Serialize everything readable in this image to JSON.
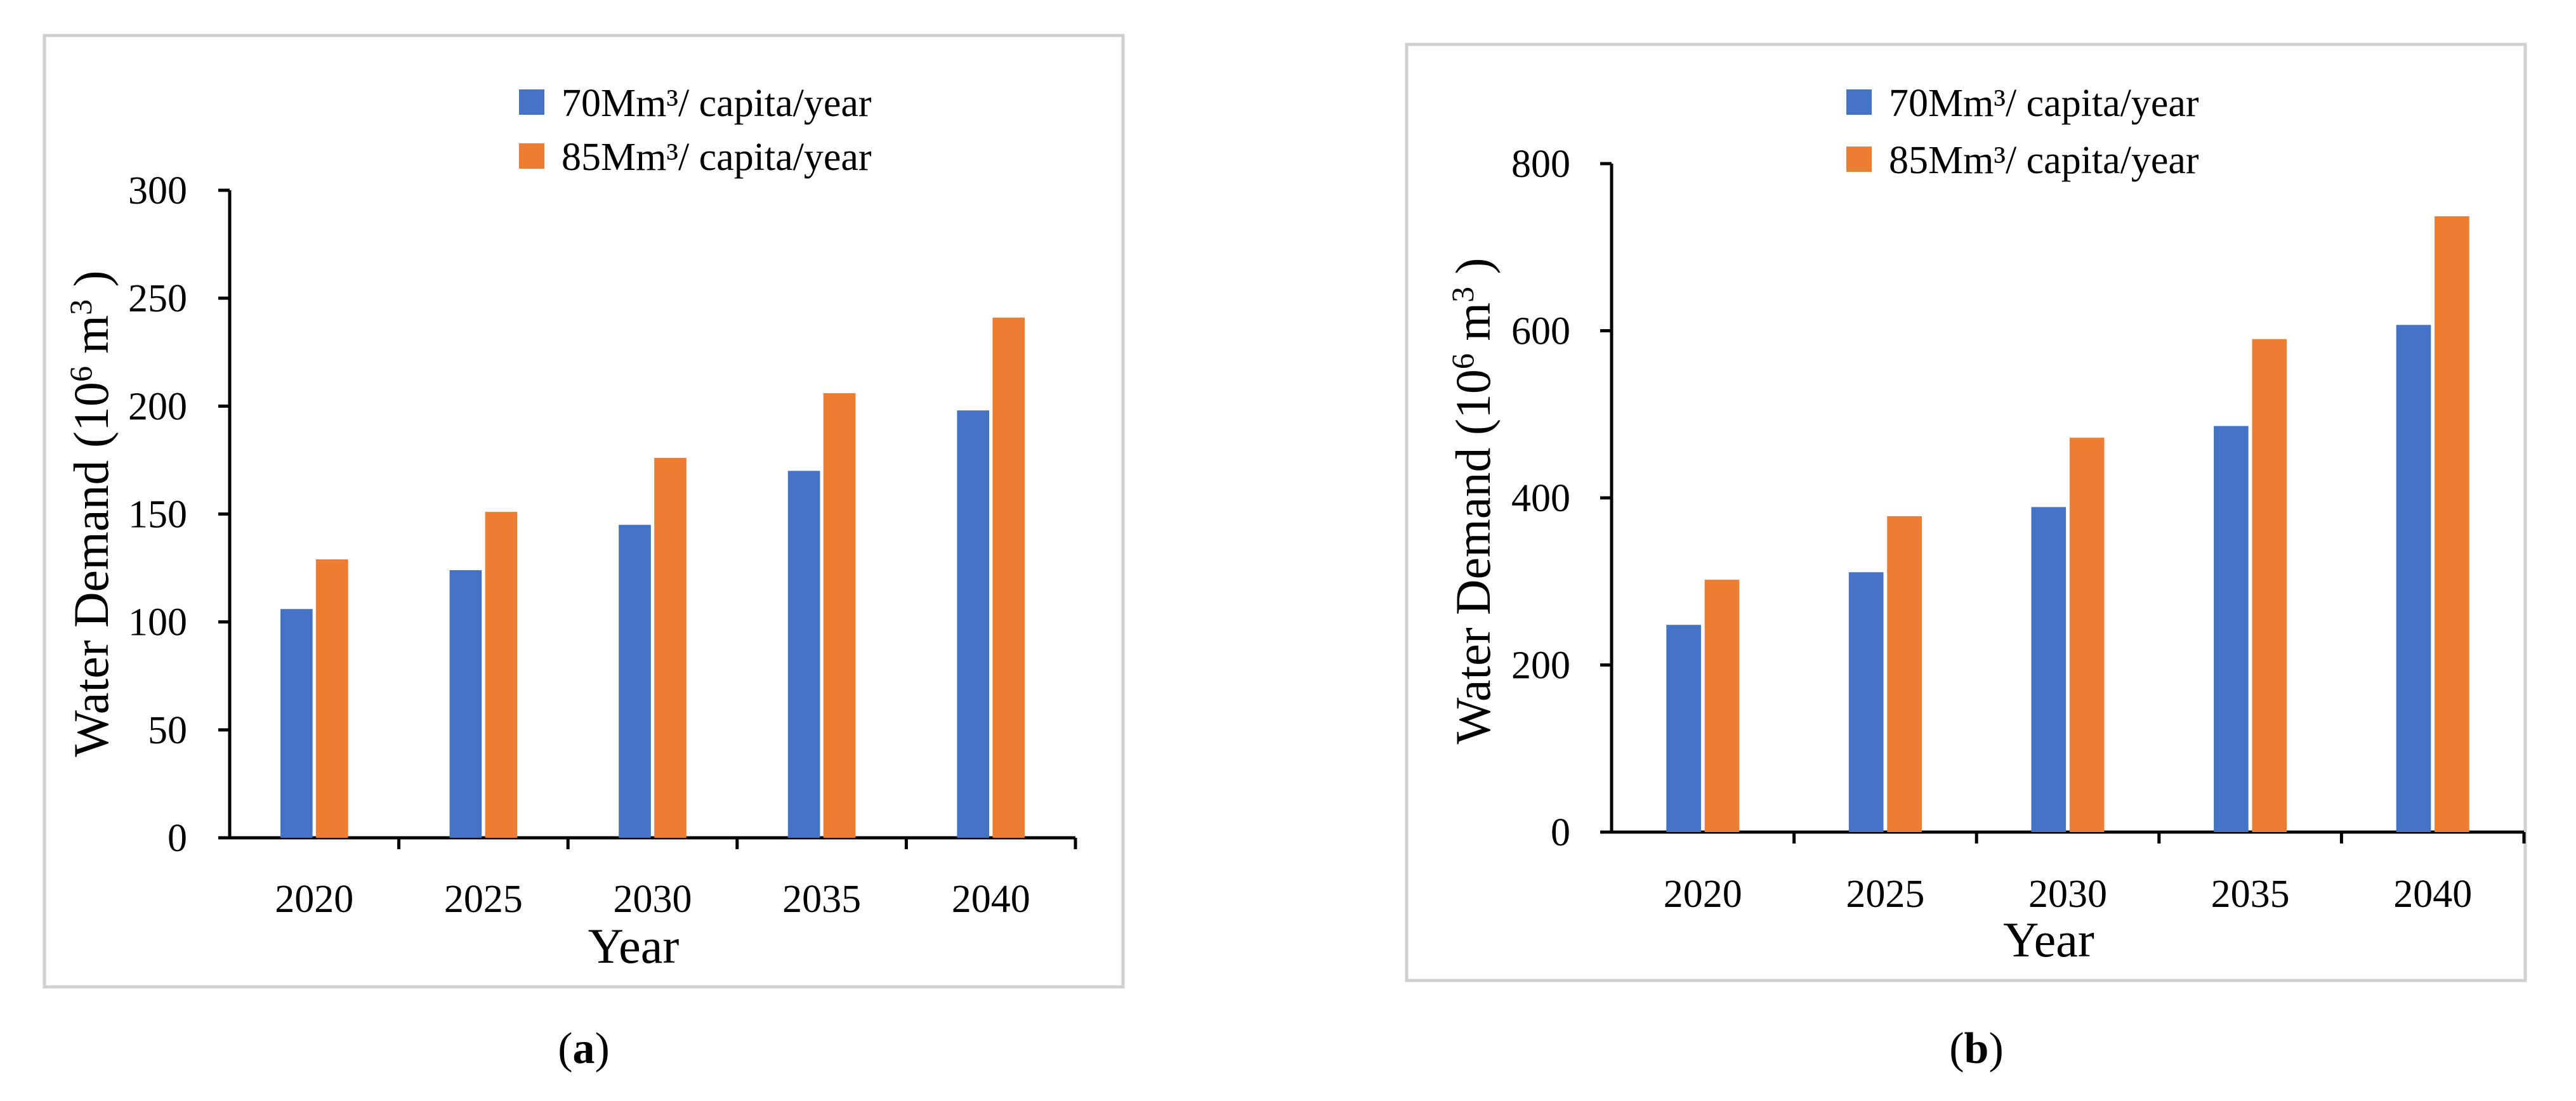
{
  "chart_data": [
    {
      "panel": "a",
      "type": "bar",
      "categories": [
        "2020",
        "2025",
        "2030",
        "2035",
        "2040"
      ],
      "series": [
        {
          "name": "70Mm³/ capita/year",
          "color": "#4472C4",
          "values": [
            106,
            124,
            145,
            170,
            198
          ]
        },
        {
          "name": "85Mm³/ capita/year",
          "color": "#ED7D31",
          "values": [
            129,
            151,
            176,
            206,
            241
          ]
        }
      ],
      "xlabel": "Year",
      "ylabel_main": "Water Demand (10",
      "ylabel_exp": "6",
      "ylabel_unit": " m",
      "ylabel_unit_exp": "3",
      "ylabel_end": " )",
      "ylim": [
        0,
        300
      ],
      "yticks": [
        0,
        50,
        100,
        150,
        200,
        250,
        300
      ],
      "legend_position": "top-right",
      "grid": false
    },
    {
      "panel": "b",
      "type": "bar",
      "categories": [
        "2020",
        "2025",
        "2030",
        "2035",
        "2040"
      ],
      "series": [
        {
          "name": "70Mm³/ capita/year",
          "color": "#4472C4",
          "values": [
            248,
            311,
            389,
            486,
            607
          ]
        },
        {
          "name": "85Mm³/ capita/year",
          "color": "#ED7D31",
          "values": [
            302,
            378,
            472,
            590,
            737
          ]
        }
      ],
      "xlabel": "Year",
      "ylabel_main": "Water Demand (10",
      "ylabel_exp": "6",
      "ylabel_unit": " m",
      "ylabel_unit_exp": "3",
      "ylabel_end": " )",
      "ylim": [
        0,
        800
      ],
      "yticks": [
        0,
        200,
        400,
        600,
        800
      ],
      "legend_position": "top-right",
      "grid": false
    }
  ],
  "captions": [
    {
      "open": "(",
      "letter": "a",
      "close": ")"
    },
    {
      "open": "(",
      "letter": "b",
      "close": ")"
    }
  ]
}
